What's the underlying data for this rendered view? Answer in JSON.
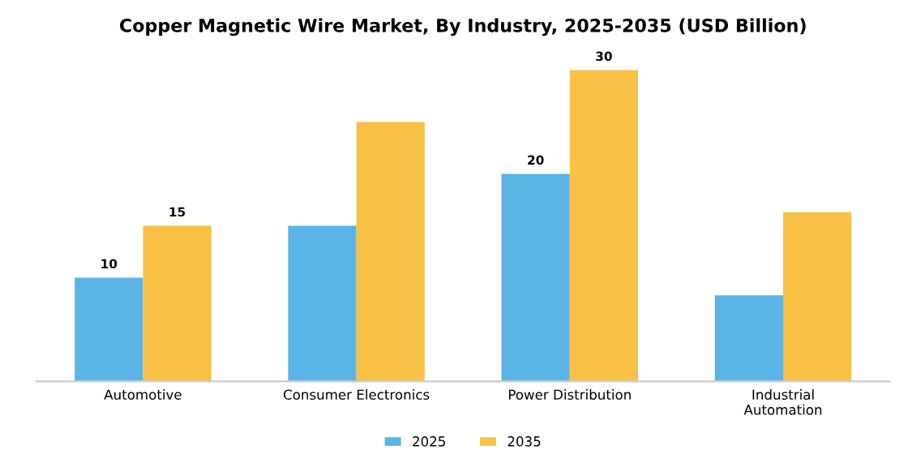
{
  "chart_data": {
    "type": "bar",
    "title": "Copper Magnetic Wire Market, By Industry, 2025-2035 (USD Billion)",
    "categories": [
      "Automotive",
      "Consumer Electronics",
      "Power Distribution",
      "Industrial\nAutomation"
    ],
    "series": [
      {
        "name": "2025",
        "color": "#5ab4e5",
        "values": [
          10,
          15,
          20,
          8.3
        ],
        "value_labels": [
          "10",
          null,
          "20",
          null
        ]
      },
      {
        "name": "2035",
        "color": "#f8c146",
        "values": [
          15,
          25,
          30,
          16.3
        ],
        "value_labels": [
          "15",
          null,
          "30",
          null
        ]
      }
    ],
    "tick_labels": "x",
    "legend": "bottom",
    "grid": false
  }
}
